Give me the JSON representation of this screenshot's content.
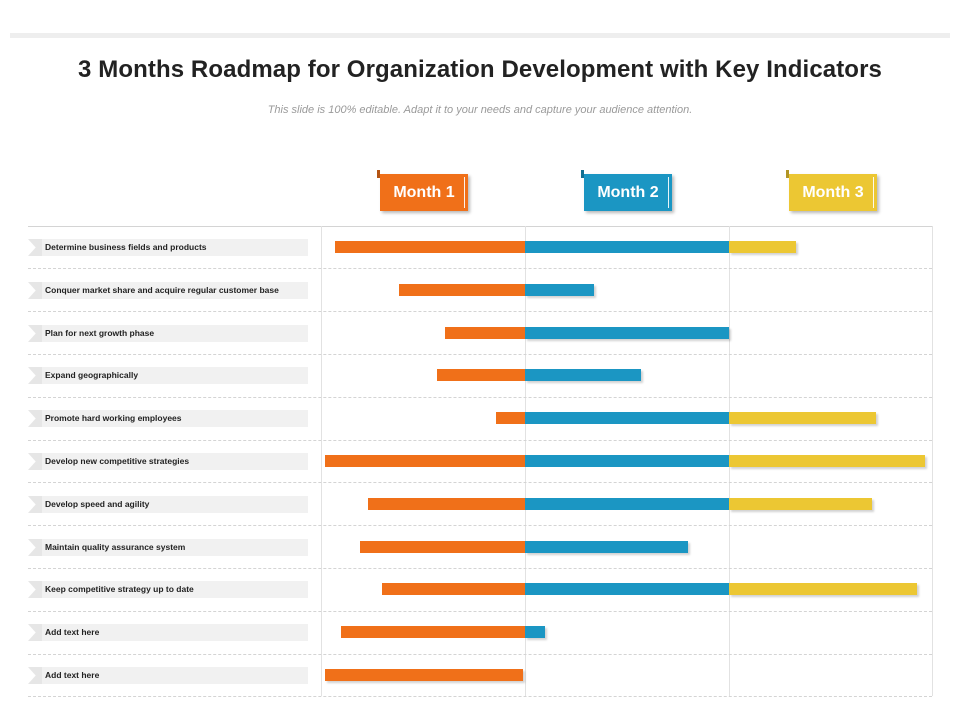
{
  "title": "3 Months Roadmap for Organization Development with Key Indicators",
  "subtitle": "This slide is 100% editable. Adapt it to your needs and capture your audience attention.",
  "colors": {
    "month1": "#f07019",
    "month2": "#1b96c3",
    "month3": "#ecc733"
  },
  "months": [
    {
      "label": "Month 1"
    },
    {
      "label": "Month 2"
    },
    {
      "label": "Month 3"
    }
  ],
  "chart_data": {
    "type": "gantt",
    "timeline_unit": "months",
    "x_range": [
      0,
      3
    ],
    "tasks": [
      {
        "label": "Determine business fields and products",
        "start": 0.07,
        "end": 2.33
      },
      {
        "label": "Conquer market share and acquire regular customer base",
        "start": 0.38,
        "end": 1.34
      },
      {
        "label": "Plan for next growth phase",
        "start": 0.61,
        "end": 2.0
      },
      {
        "label": "Expand geographically",
        "start": 0.57,
        "end": 1.57
      },
      {
        "label": "Promote hard working employees",
        "start": 0.86,
        "end": 2.72
      },
      {
        "label": "Develop new competitive strategies",
        "start": 0.02,
        "end": 2.96
      },
      {
        "label": "Develop speed and agility",
        "start": 0.23,
        "end": 2.7
      },
      {
        "label": "Maintain quality assurance system",
        "start": 0.19,
        "end": 1.8
      },
      {
        "label": "Keep competitive strategy up to date",
        "start": 0.3,
        "end": 2.92
      },
      {
        "label": "Add text here",
        "start": 0.1,
        "end": 1.1
      },
      {
        "label": "Add text here",
        "start": 0.02,
        "end": 0.99
      }
    ]
  }
}
